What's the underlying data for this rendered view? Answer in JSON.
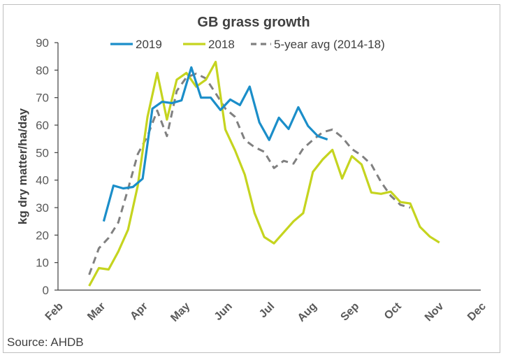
{
  "chart_data": {
    "type": "line",
    "title": "GB grass growth",
    "xlabel": "",
    "ylabel": "kg dry matter/ha/day",
    "ylim": [
      0,
      90
    ],
    "yticks": [
      0,
      10,
      20,
      30,
      40,
      50,
      60,
      70,
      80,
      90
    ],
    "x_tick_labels": [
      "Feb",
      "Mar",
      "Apr",
      "May",
      "Jun",
      "Jul",
      "Aug",
      "Sep",
      "Oct",
      "Nov",
      "Dec"
    ],
    "x_unit": "weeks after start of February (weekly points)",
    "xlim_months": [
      0,
      10
    ],
    "grid": false,
    "legend_position": "top",
    "source": "Source: AHDB",
    "series": [
      {
        "name": "2019",
        "color": "#1b8ec9",
        "style": "solid",
        "start_week": 4.7,
        "values": [
          25,
          38,
          37,
          37.5,
          40.5,
          66,
          68.5,
          68,
          69,
          81,
          70,
          70,
          65.5,
          69.3,
          67.3,
          74,
          61,
          54.6,
          62.7,
          58.6,
          66.5,
          59.7,
          56,
          54.8
        ]
      },
      {
        "name": "2018",
        "color": "#c5d41f",
        "style": "solid",
        "start_week": 3.2,
        "values": [
          1.5,
          8,
          7.5,
          14,
          22,
          38,
          63,
          79,
          62,
          76.5,
          79,
          74,
          76.5,
          83,
          58.4,
          50.8,
          42,
          28,
          19.3,
          17,
          21,
          25,
          28,
          43,
          47.5,
          51,
          40.6,
          48.7,
          45.7,
          35.5,
          35,
          35.8,
          32,
          31.5,
          23,
          19.5,
          17.3
        ]
      },
      {
        "name": "5-year avg (2014-18)",
        "color": "#808080",
        "style": "dashed",
        "start_week": 3.2,
        "values": [
          5.6,
          15.2,
          19,
          24.6,
          36.8,
          49.5,
          56,
          65.3,
          56,
          72.4,
          77.4,
          78.7,
          77,
          71.6,
          66,
          63,
          54.6,
          52,
          50.3,
          44.4,
          47,
          46,
          51.5,
          54.6,
          57.4,
          58.4,
          55.6,
          51.3,
          49,
          45.7,
          39.3,
          34.3,
          31,
          30
        ]
      }
    ]
  }
}
